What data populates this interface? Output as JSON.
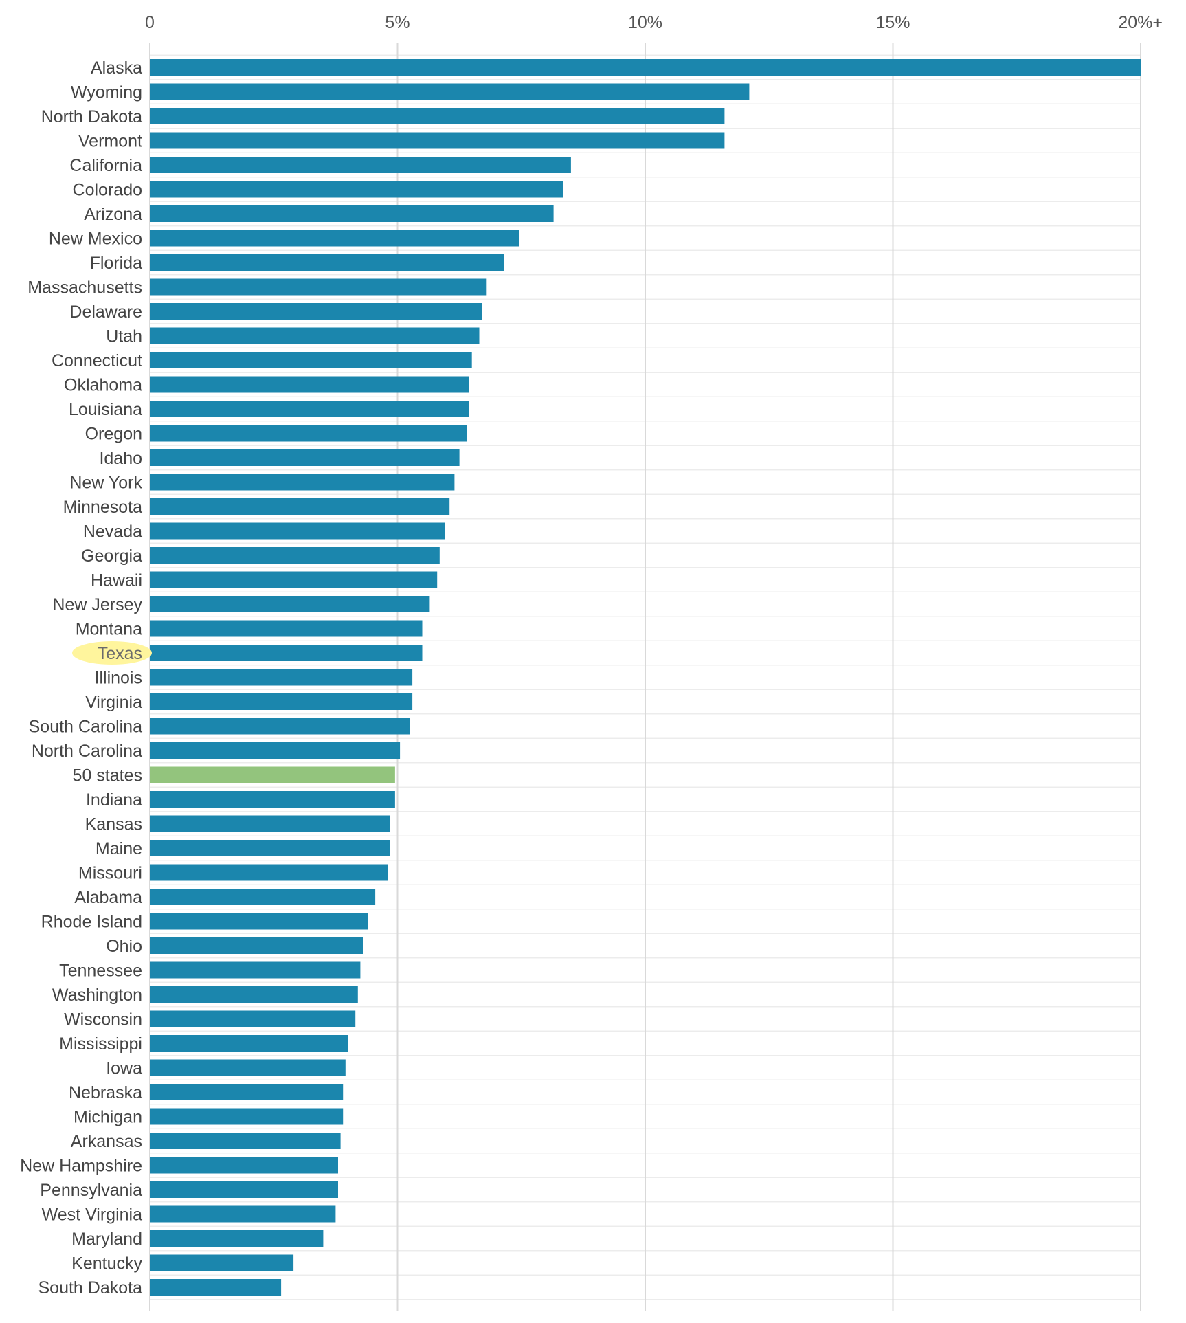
{
  "chart_data": {
    "type": "bar",
    "orientation": "horizontal",
    "title": "",
    "xlabel": "",
    "ylabel": "",
    "xlim": [
      0,
      20
    ],
    "grid": true,
    "ticks": [
      {
        "value": 0,
        "label": "0"
      },
      {
        "value": 5,
        "label": "5%"
      },
      {
        "value": 10,
        "label": "10%"
      },
      {
        "value": 15,
        "label": "15%"
      },
      {
        "value": 20,
        "label": "20%+"
      }
    ],
    "categories": [
      "Alaska",
      "Wyoming",
      "North Dakota",
      "Vermont",
      "California",
      "Colorado",
      "Arizona",
      "New Mexico",
      "Florida",
      "Massachusetts",
      "Delaware",
      "Utah",
      "Connecticut",
      "Oklahoma",
      "Louisiana",
      "Oregon",
      "Idaho",
      "New York",
      "Minnesota",
      "Nevada",
      "Georgia",
      "Hawaii",
      "New Jersey",
      "Montana",
      "Texas",
      "Illinois",
      "Virginia",
      "South Carolina",
      "North Carolina",
      "50 states",
      "Indiana",
      "Kansas",
      "Maine",
      "Missouri",
      "Alabama",
      "Rhode Island",
      "Ohio",
      "Tennessee",
      "Washington",
      "Wisconsin",
      "Mississippi",
      "Iowa",
      "Nebraska",
      "Michigan",
      "Arkansas",
      "New Hampshire",
      "Pennsylvania",
      "West Virginia",
      "Maryland",
      "Kentucky",
      "South Dakota"
    ],
    "values": [
      20.0,
      12.1,
      11.6,
      11.6,
      8.5,
      8.35,
      8.15,
      7.45,
      7.15,
      6.8,
      6.7,
      6.65,
      6.5,
      6.45,
      6.45,
      6.4,
      6.25,
      6.15,
      6.05,
      5.95,
      5.85,
      5.8,
      5.65,
      5.5,
      5.5,
      5.3,
      5.3,
      5.25,
      5.05,
      4.95,
      4.95,
      4.85,
      4.85,
      4.8,
      4.55,
      4.4,
      4.3,
      4.25,
      4.2,
      4.15,
      4.0,
      3.95,
      3.9,
      3.9,
      3.85,
      3.8,
      3.8,
      3.75,
      3.5,
      2.9,
      2.65
    ],
    "highlight_label": "Texas",
    "average_label": "50 states",
    "colors": {
      "bar": "#1b86ad",
      "average_bar": "#93c47d",
      "highlight_label_bg": "#fff59d",
      "grid": "#d9d9d9",
      "axis_text": "#555555",
      "label_text": "#444444"
    }
  }
}
